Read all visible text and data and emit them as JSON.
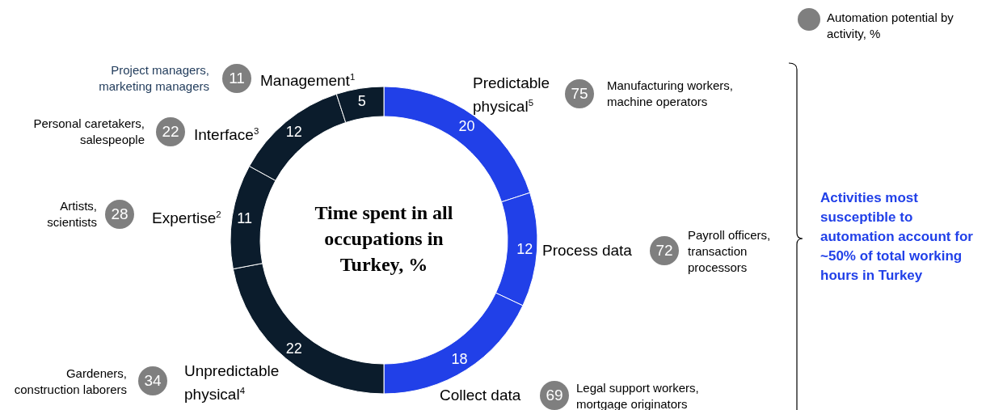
{
  "chart_data": {
    "type": "donut",
    "title": "Time spent in all occupations in Turkey, %",
    "categories": [
      "Predictable physical$^{5}$",
      "Process data",
      "Collect data",
      "Unpredictable physical$^{4}$",
      "Expertise$^{2}$",
      "Interface$^{3}$",
      "Management$^{1}$"
    ],
    "values": [
      20,
      12,
      18,
      22,
      11,
      12,
      5
    ],
    "colors": [
      "#2140e8",
      "#2140e8",
      "#2140e8",
      "#0b1c2c",
      "#0b1c2c",
      "#0b1c2c",
      "#0b1c2c"
    ],
    "data_labels": true,
    "annotations": [
      "Automation potential by activity, %",
      "Activities most susceptible to automation account for ~50% of total working hours in Turkey",
      "75",
      "Manufacturing workers, machine operators",
      "72",
      "Payroll officers, transaction processors",
      "69",
      "Legal support workers, mortgage originators",
      "34",
      "Gardeners, construction laborers",
      "28",
      "Artists, scientists",
      "22",
      "Personal caretakers, salespeople",
      "11",
      "Project managers, marketing managers"
    ]
  }
}
